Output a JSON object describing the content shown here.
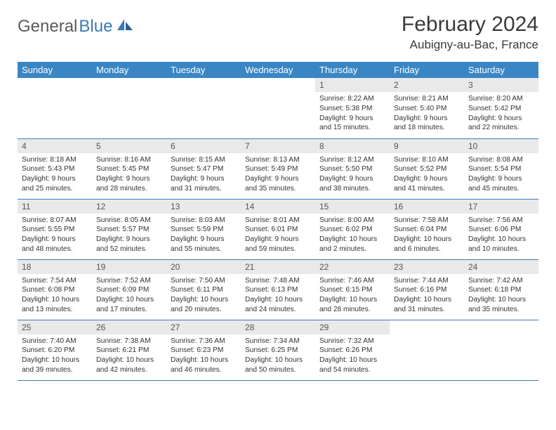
{
  "brand": {
    "part1": "General",
    "part2": "Blue"
  },
  "title": "February 2024",
  "location": "Aubigny-au-Bac, France",
  "colors": {
    "header_bg": "#3a86c5",
    "header_text": "#ffffff",
    "daynum_bg": "#e9e9e9",
    "border": "#3a7ab8",
    "brand_blue": "#3a7ab8",
    "text": "#333333"
  },
  "typography": {
    "title_fontsize": 30,
    "location_fontsize": 17,
    "dayheader_fontsize": 13,
    "cell_fontsize": 10.2
  },
  "day_headers": [
    "Sunday",
    "Monday",
    "Tuesday",
    "Wednesday",
    "Thursday",
    "Friday",
    "Saturday"
  ],
  "weeks": [
    [
      null,
      null,
      null,
      null,
      {
        "n": "1",
        "sunrise": "8:22 AM",
        "sunset": "5:38 PM",
        "dl1": "Daylight: 9 hours",
        "dl2": "and 15 minutes."
      },
      {
        "n": "2",
        "sunrise": "8:21 AM",
        "sunset": "5:40 PM",
        "dl1": "Daylight: 9 hours",
        "dl2": "and 18 minutes."
      },
      {
        "n": "3",
        "sunrise": "8:20 AM",
        "sunset": "5:42 PM",
        "dl1": "Daylight: 9 hours",
        "dl2": "and 22 minutes."
      }
    ],
    [
      {
        "n": "4",
        "sunrise": "8:18 AM",
        "sunset": "5:43 PM",
        "dl1": "Daylight: 9 hours",
        "dl2": "and 25 minutes."
      },
      {
        "n": "5",
        "sunrise": "8:16 AM",
        "sunset": "5:45 PM",
        "dl1": "Daylight: 9 hours",
        "dl2": "and 28 minutes."
      },
      {
        "n": "6",
        "sunrise": "8:15 AM",
        "sunset": "5:47 PM",
        "dl1": "Daylight: 9 hours",
        "dl2": "and 31 minutes."
      },
      {
        "n": "7",
        "sunrise": "8:13 AM",
        "sunset": "5:49 PM",
        "dl1": "Daylight: 9 hours",
        "dl2": "and 35 minutes."
      },
      {
        "n": "8",
        "sunrise": "8:12 AM",
        "sunset": "5:50 PM",
        "dl1": "Daylight: 9 hours",
        "dl2": "and 38 minutes."
      },
      {
        "n": "9",
        "sunrise": "8:10 AM",
        "sunset": "5:52 PM",
        "dl1": "Daylight: 9 hours",
        "dl2": "and 41 minutes."
      },
      {
        "n": "10",
        "sunrise": "8:08 AM",
        "sunset": "5:54 PM",
        "dl1": "Daylight: 9 hours",
        "dl2": "and 45 minutes."
      }
    ],
    [
      {
        "n": "11",
        "sunrise": "8:07 AM",
        "sunset": "5:55 PM",
        "dl1": "Daylight: 9 hours",
        "dl2": "and 48 minutes."
      },
      {
        "n": "12",
        "sunrise": "8:05 AM",
        "sunset": "5:57 PM",
        "dl1": "Daylight: 9 hours",
        "dl2": "and 52 minutes."
      },
      {
        "n": "13",
        "sunrise": "8:03 AM",
        "sunset": "5:59 PM",
        "dl1": "Daylight: 9 hours",
        "dl2": "and 55 minutes."
      },
      {
        "n": "14",
        "sunrise": "8:01 AM",
        "sunset": "6:01 PM",
        "dl1": "Daylight: 9 hours",
        "dl2": "and 59 minutes."
      },
      {
        "n": "15",
        "sunrise": "8:00 AM",
        "sunset": "6:02 PM",
        "dl1": "Daylight: 10 hours",
        "dl2": "and 2 minutes."
      },
      {
        "n": "16",
        "sunrise": "7:58 AM",
        "sunset": "6:04 PM",
        "dl1": "Daylight: 10 hours",
        "dl2": "and 6 minutes."
      },
      {
        "n": "17",
        "sunrise": "7:56 AM",
        "sunset": "6:06 PM",
        "dl1": "Daylight: 10 hours",
        "dl2": "and 10 minutes."
      }
    ],
    [
      {
        "n": "18",
        "sunrise": "7:54 AM",
        "sunset": "6:08 PM",
        "dl1": "Daylight: 10 hours",
        "dl2": "and 13 minutes."
      },
      {
        "n": "19",
        "sunrise": "7:52 AM",
        "sunset": "6:09 PM",
        "dl1": "Daylight: 10 hours",
        "dl2": "and 17 minutes."
      },
      {
        "n": "20",
        "sunrise": "7:50 AM",
        "sunset": "6:11 PM",
        "dl1": "Daylight: 10 hours",
        "dl2": "and 20 minutes."
      },
      {
        "n": "21",
        "sunrise": "7:48 AM",
        "sunset": "6:13 PM",
        "dl1": "Daylight: 10 hours",
        "dl2": "and 24 minutes."
      },
      {
        "n": "22",
        "sunrise": "7:46 AM",
        "sunset": "6:15 PM",
        "dl1": "Daylight: 10 hours",
        "dl2": "and 28 minutes."
      },
      {
        "n": "23",
        "sunrise": "7:44 AM",
        "sunset": "6:16 PM",
        "dl1": "Daylight: 10 hours",
        "dl2": "and 31 minutes."
      },
      {
        "n": "24",
        "sunrise": "7:42 AM",
        "sunset": "6:18 PM",
        "dl1": "Daylight: 10 hours",
        "dl2": "and 35 minutes."
      }
    ],
    [
      {
        "n": "25",
        "sunrise": "7:40 AM",
        "sunset": "6:20 PM",
        "dl1": "Daylight: 10 hours",
        "dl2": "and 39 minutes."
      },
      {
        "n": "26",
        "sunrise": "7:38 AM",
        "sunset": "6:21 PM",
        "dl1": "Daylight: 10 hours",
        "dl2": "and 42 minutes."
      },
      {
        "n": "27",
        "sunrise": "7:36 AM",
        "sunset": "6:23 PM",
        "dl1": "Daylight: 10 hours",
        "dl2": "and 46 minutes."
      },
      {
        "n": "28",
        "sunrise": "7:34 AM",
        "sunset": "6:25 PM",
        "dl1": "Daylight: 10 hours",
        "dl2": "and 50 minutes."
      },
      {
        "n": "29",
        "sunrise": "7:32 AM",
        "sunset": "6:26 PM",
        "dl1": "Daylight: 10 hours",
        "dl2": "and 54 minutes."
      },
      null,
      null
    ]
  ]
}
